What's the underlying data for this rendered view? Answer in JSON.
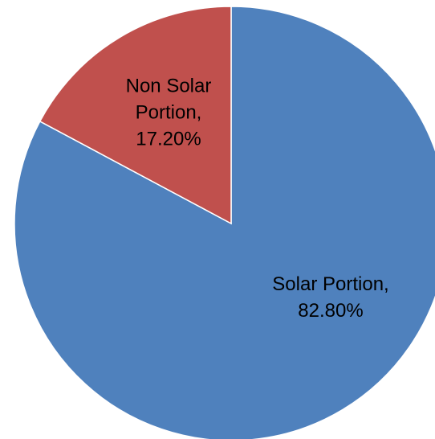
{
  "chart_data": {
    "type": "pie",
    "values": [
      82.8,
      17.2
    ],
    "value_labels": [
      "Solar Portion, 82.80%",
      "Non Solar Portion, 17.20%"
    ],
    "colors": [
      "#4f81bd",
      "#c0504d"
    ]
  }
}
